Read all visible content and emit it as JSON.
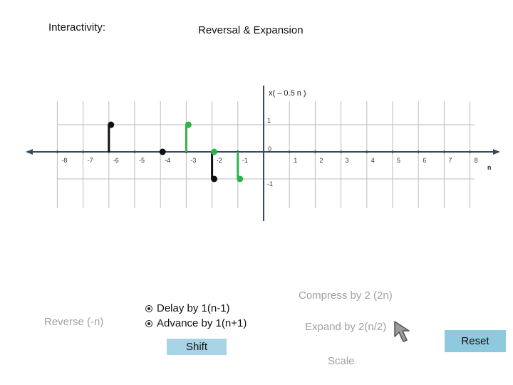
{
  "header": {
    "interactivity_label": "Interactivity:",
    "title": "Reversal & Expansion"
  },
  "chart_data": {
    "type": "scatter",
    "formula_label": "x( – 0.5 n )",
    "n_axis_label": "n",
    "x_ticks": [
      -8,
      -7,
      -6,
      -5,
      -4,
      -3,
      -2,
      -1,
      0,
      1,
      2,
      3,
      4,
      5,
      6,
      7,
      8
    ],
    "x_tick_labels": [
      "-8",
      "-7",
      "-6",
      "-5",
      "-4",
      "-3",
      "-2",
      "-1",
      "0",
      "1",
      "2",
      "3",
      "4",
      "5",
      "6",
      "7",
      "8"
    ],
    "y_tick_labels": [
      {
        "value": 1,
        "label": "1"
      },
      {
        "value": -1,
        "label": "-1"
      }
    ],
    "xlim": [
      -9,
      9
    ],
    "ylim": [
      -1.2,
      1.2
    ],
    "grid": true,
    "series": [
      {
        "color": "#111111",
        "stems": true,
        "points": [
          [
            -6,
            1
          ],
          [
            -4,
            0
          ],
          [
            -2,
            -1
          ]
        ]
      },
      {
        "color": "#2db34a",
        "stems": true,
        "points": [
          [
            -3,
            1
          ],
          [
            -2,
            0
          ],
          [
            -1,
            -1
          ]
        ]
      }
    ]
  },
  "controls": {
    "reverse_label": "Reverse (-n)",
    "delay_label": "Delay by 1(n-1)",
    "advance_label": "Advance by 1(n+1)",
    "shift_label": "Shift",
    "compress_label": "Compress by 2 (2n)",
    "expand_label": "Expand by 2(n/2)",
    "scale_label": "Scale",
    "reset_label": "Reset"
  },
  "colors": {
    "accent_button": "#8fc9de",
    "shift_button": "#a6d4e4",
    "inactive_text": "#a0a0a0"
  },
  "icons": {
    "radio": "radio-dot-icon",
    "pointer": "mouse-pointer-icon"
  }
}
